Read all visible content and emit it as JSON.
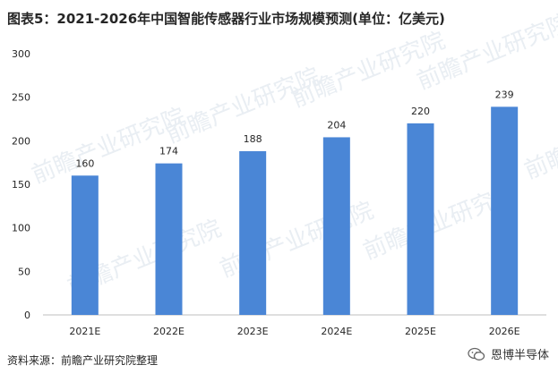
{
  "title": "图表5：2021-2026年中国智能传感器行业市场规模预测(单位：亿美元)",
  "source": "资料来源：前瞻产业研究院整理",
  "watermark_brand": "恩博半导体",
  "watermark_text": "前瞻产业研究院",
  "colors": {
    "bar": "#4a86d6",
    "axis": "#bfbfbf",
    "text": "#262626"
  },
  "chart_data": {
    "type": "bar",
    "title": "图表5：2021-2026年中国智能传感器行业市场规模预测(单位：亿美元)",
    "categories": [
      "2021E",
      "2022E",
      "2023E",
      "2024E",
      "2025E",
      "2026E"
    ],
    "values": [
      160,
      174,
      188,
      204,
      220,
      239
    ],
    "xlabel": "",
    "ylabel": "",
    "ylim": [
      0,
      300
    ],
    "yticks": [
      0,
      50,
      100,
      150,
      200,
      250,
      300
    ],
    "grid": false,
    "legend": "none"
  }
}
